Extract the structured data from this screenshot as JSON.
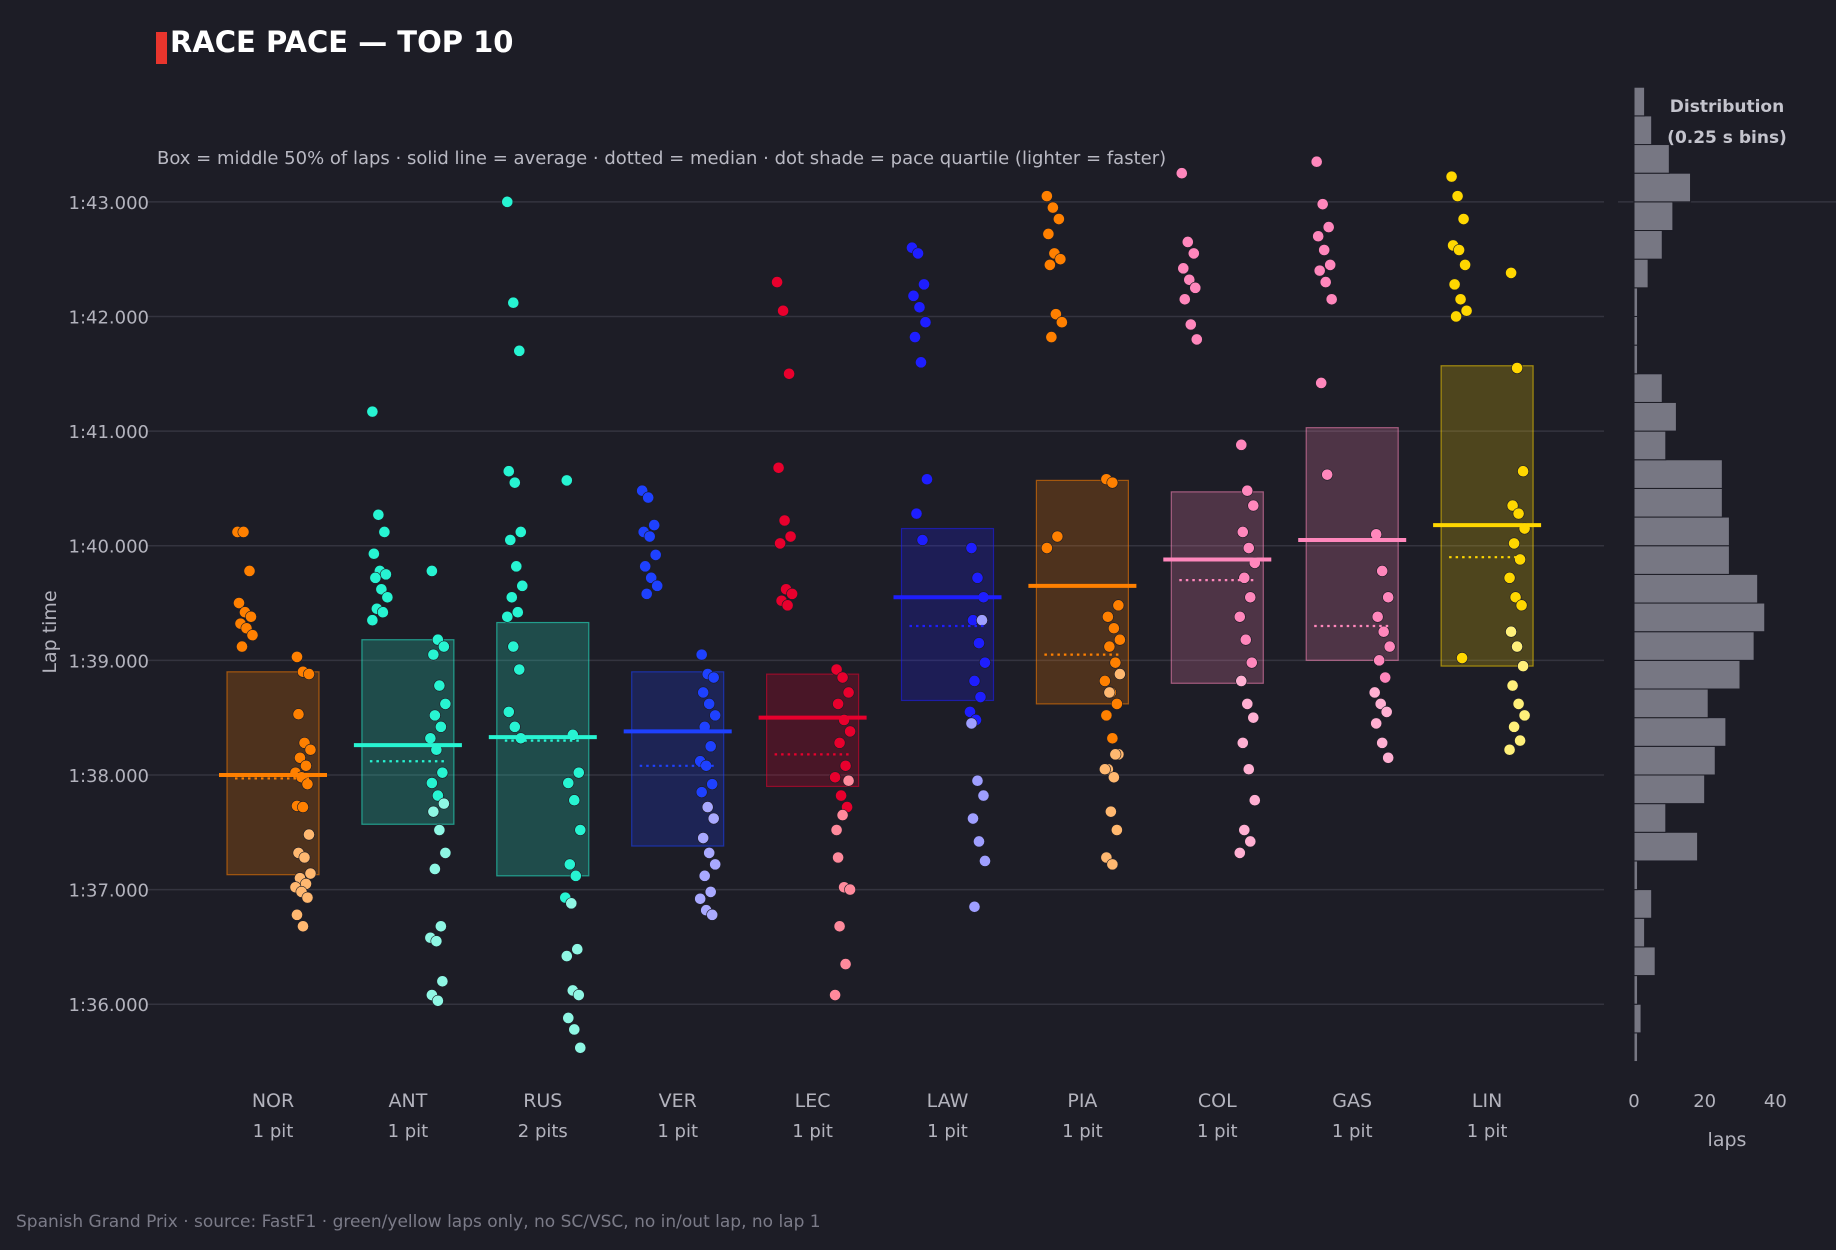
{
  "chart_data": {
    "type": "scatter",
    "title": "RACE PACE — TOP 10",
    "subtitle": "Box = middle 50% of laps · solid line = average · dotted = median · dot shade = pace quartile (lighter = faster)",
    "ylabel": "Lap time",
    "y_unit": "seconds",
    "ylim": [
      95.4,
      103.4
    ],
    "y_ticks": [
      {
        "value": 96,
        "label": "1:36.000"
      },
      {
        "value": 97,
        "label": "1:37.000"
      },
      {
        "value": 98,
        "label": "1:38.000"
      },
      {
        "value": 99,
        "label": "1:39.000"
      },
      {
        "value": 100,
        "label": "1:40.000"
      },
      {
        "value": 101,
        "label": "1:41.000"
      },
      {
        "value": 102,
        "label": "1:42.000"
      },
      {
        "value": 103,
        "label": "1:43.000"
      }
    ],
    "grid": true,
    "drivers": [
      {
        "code": "NOR",
        "pits": "1 pit",
        "color": "#ff8000",
        "light": "#ffb870",
        "q1": 97.13,
        "q3": 98.9,
        "mean": 98.0,
        "median": 97.97,
        "early": [
          100.12,
          100.12,
          99.78,
          99.5,
          99.42,
          99.38,
          99.32,
          99.28,
          99.22,
          99.12
        ],
        "late": [
          99.03,
          98.9,
          98.88,
          98.53,
          98.28,
          98.22,
          98.15,
          98.08,
          98.02,
          97.98,
          97.92,
          97.73,
          97.72,
          97.48,
          97.32,
          97.28,
          97.14,
          97.1,
          97.05,
          97.02,
          96.98,
          96.93,
          96.78,
          96.68
        ]
      },
      {
        "code": "ANT",
        "pits": "1 pit",
        "color": "#27f4d2",
        "light": "#8ff7e4",
        "q1": 97.57,
        "q3": 99.18,
        "mean": 98.26,
        "median": 98.12,
        "early": [
          101.17,
          100.27,
          100.12,
          99.93,
          99.78,
          99.75,
          99.72,
          99.62,
          99.55,
          99.45,
          99.42,
          99.35
        ],
        "late": [
          99.78,
          99.18,
          99.12,
          99.05,
          98.78,
          98.62,
          98.52,
          98.42,
          98.32,
          98.22,
          98.02,
          97.93,
          97.82,
          97.75,
          97.68,
          97.52,
          97.32,
          97.18,
          96.68,
          96.58,
          96.55,
          96.2,
          96.08,
          96.03
        ]
      },
      {
        "code": "RUS",
        "pits": "2 pits",
        "color": "#27f4d2",
        "light": "#8ff7e4",
        "q1": 97.12,
        "q3": 99.33,
        "mean": 98.33,
        "median": 98.3,
        "early": [
          103.0,
          102.12,
          101.7,
          100.65,
          100.55,
          100.12,
          100.05,
          99.82,
          99.65,
          99.55,
          99.42,
          99.38,
          99.12,
          98.92,
          98.55,
          98.42,
          98.32
        ],
        "late": [
          100.57,
          98.35,
          98.02,
          97.93,
          97.78,
          97.52,
          97.22,
          97.12,
          96.93,
          96.88,
          96.48,
          96.42,
          96.12,
          96.08,
          95.88,
          95.78,
          95.62
        ]
      },
      {
        "code": "VER",
        "pits": "1 pit",
        "color": "#1e41ff",
        "light": "#a9a9ff",
        "q1": 97.38,
        "q3": 98.9,
        "mean": 98.38,
        "median": 98.08,
        "early": [
          100.48,
          100.42,
          100.18,
          100.12,
          100.08,
          99.92,
          99.82,
          99.72,
          99.65,
          99.58
        ],
        "late": [
          99.05,
          98.88,
          98.85,
          98.72,
          98.62,
          98.52,
          98.42,
          98.25,
          98.12,
          98.08,
          97.92,
          97.85,
          97.72,
          97.62,
          97.45,
          97.32,
          97.22,
          97.12,
          96.98,
          96.92,
          96.82,
          96.78
        ]
      },
      {
        "code": "LEC",
        "pits": "1 pit",
        "color": "#e8002d",
        "light": "#ff8a9c",
        "q1": 97.9,
        "q3": 98.88,
        "mean": 98.5,
        "median": 98.18,
        "early": [
          102.3,
          102.05,
          101.5,
          100.68,
          100.22,
          100.08,
          100.02,
          99.62,
          99.58,
          99.52,
          99.48
        ],
        "late": [
          98.92,
          98.85,
          98.72,
          98.62,
          98.48,
          98.38,
          98.28,
          98.08,
          97.98,
          97.82,
          97.72,
          97.52,
          97.65,
          97.95,
          97.28,
          97.02,
          97.0,
          96.68,
          96.35,
          96.08
        ]
      },
      {
        "code": "LAW",
        "pits": "1 pit",
        "color": "#1e1eff",
        "light": "#9f9fff",
        "q1": 98.65,
        "q3": 100.15,
        "mean": 99.55,
        "median": 99.3,
        "early": [
          102.6,
          102.55,
          102.28,
          102.18,
          102.08,
          101.95,
          101.82,
          101.6,
          100.58,
          100.28,
          100.05
        ],
        "late": [
          99.98,
          99.72,
          99.55,
          99.35,
          99.15,
          98.98,
          98.82,
          98.68,
          98.55,
          98.48,
          99.35,
          98.45,
          97.95,
          97.82,
          97.62,
          97.42,
          97.25,
          96.85
        ]
      },
      {
        "code": "PIA",
        "pits": "1 pit",
        "color": "#ff8000",
        "light": "#ffb870",
        "q1": 98.62,
        "q3": 100.57,
        "mean": 99.65,
        "median": 99.05,
        "early": [
          103.05,
          102.95,
          102.85,
          102.72,
          102.55,
          102.5,
          102.45,
          102.02,
          101.95,
          101.82,
          100.08,
          99.98
        ],
        "late": [
          100.58,
          100.55,
          99.48,
          99.38,
          99.28,
          99.18,
          99.12,
          98.98,
          98.82,
          98.72,
          98.62,
          98.52,
          98.32,
          98.18,
          98.05,
          97.98,
          98.88,
          98.72,
          98.18,
          98.05,
          97.68,
          97.52,
          97.28,
          97.22
        ]
      },
      {
        "code": "COL",
        "pits": "1 pit",
        "color": "#ff87bc",
        "light": "#ffb0d2",
        "q1": 98.8,
        "q3": 100.47,
        "mean": 99.88,
        "median": 99.7,
        "early": [
          103.25,
          102.65,
          102.55,
          102.42,
          102.32,
          102.25,
          102.15,
          101.93,
          101.8
        ],
        "late": [
          100.88,
          100.48,
          100.35,
          100.12,
          99.98,
          99.85,
          99.72,
          99.55,
          99.38,
          99.18,
          98.98,
          98.82,
          98.62,
          98.5,
          98.28,
          98.05,
          97.78,
          97.52,
          97.42,
          97.32
        ]
      },
      {
        "code": "GAS",
        "pits": "1 pit",
        "color": "#ff87bc",
        "light": "#ffb0d2",
        "q1": 99.0,
        "q3": 101.03,
        "mean": 100.05,
        "median": 99.3,
        "early": [
          103.35,
          102.98,
          102.78,
          102.7,
          102.58,
          102.45,
          102.4,
          102.3,
          102.15,
          101.42,
          100.62
        ],
        "late": [
          100.1,
          99.78,
          99.55,
          99.38,
          99.25,
          99.12,
          99.0,
          98.85,
          98.72,
          98.62,
          98.55,
          98.45,
          98.28,
          98.15
        ]
      },
      {
        "code": "LIN",
        "pits": "1 pit",
        "color": "#ffd700",
        "light": "#fff07a",
        "q1": 98.95,
        "q3": 101.57,
        "mean": 100.18,
        "median": 99.9,
        "early": [
          103.22,
          103.05,
          102.85,
          102.62,
          102.58,
          102.45,
          102.28,
          102.15,
          102.05,
          102.0,
          99.02
        ],
        "late": [
          102.38,
          101.55,
          100.65,
          100.35,
          100.28,
          100.15,
          100.02,
          99.88,
          99.72,
          99.55,
          99.48,
          99.25,
          99.12,
          98.95,
          98.78,
          98.62,
          98.52,
          98.42,
          98.3,
          98.22
        ]
      }
    ],
    "histogram": {
      "title_line1": "Distribution",
      "title_line2": "(0.25 s bins)",
      "xlabel": "laps",
      "x_ticks": [
        0,
        20,
        40
      ],
      "xlim": [
        0,
        45
      ],
      "bin_width": 0.25,
      "bin_start": 95.5,
      "counts": [
        1,
        2,
        1,
        6,
        3,
        5,
        1,
        18,
        9,
        20,
        23,
        26,
        21,
        30,
        34,
        37,
        35,
        27,
        27,
        25,
        25,
        9,
        12,
        8,
        1,
        1,
        1,
        4,
        8,
        11,
        16,
        10,
        5,
        3
      ]
    }
  },
  "caption": "Spanish Grand Prix  ·  source: FastF1  ·  green/yellow laps only, no SC/VSC, no in/out lap, no lap 1"
}
